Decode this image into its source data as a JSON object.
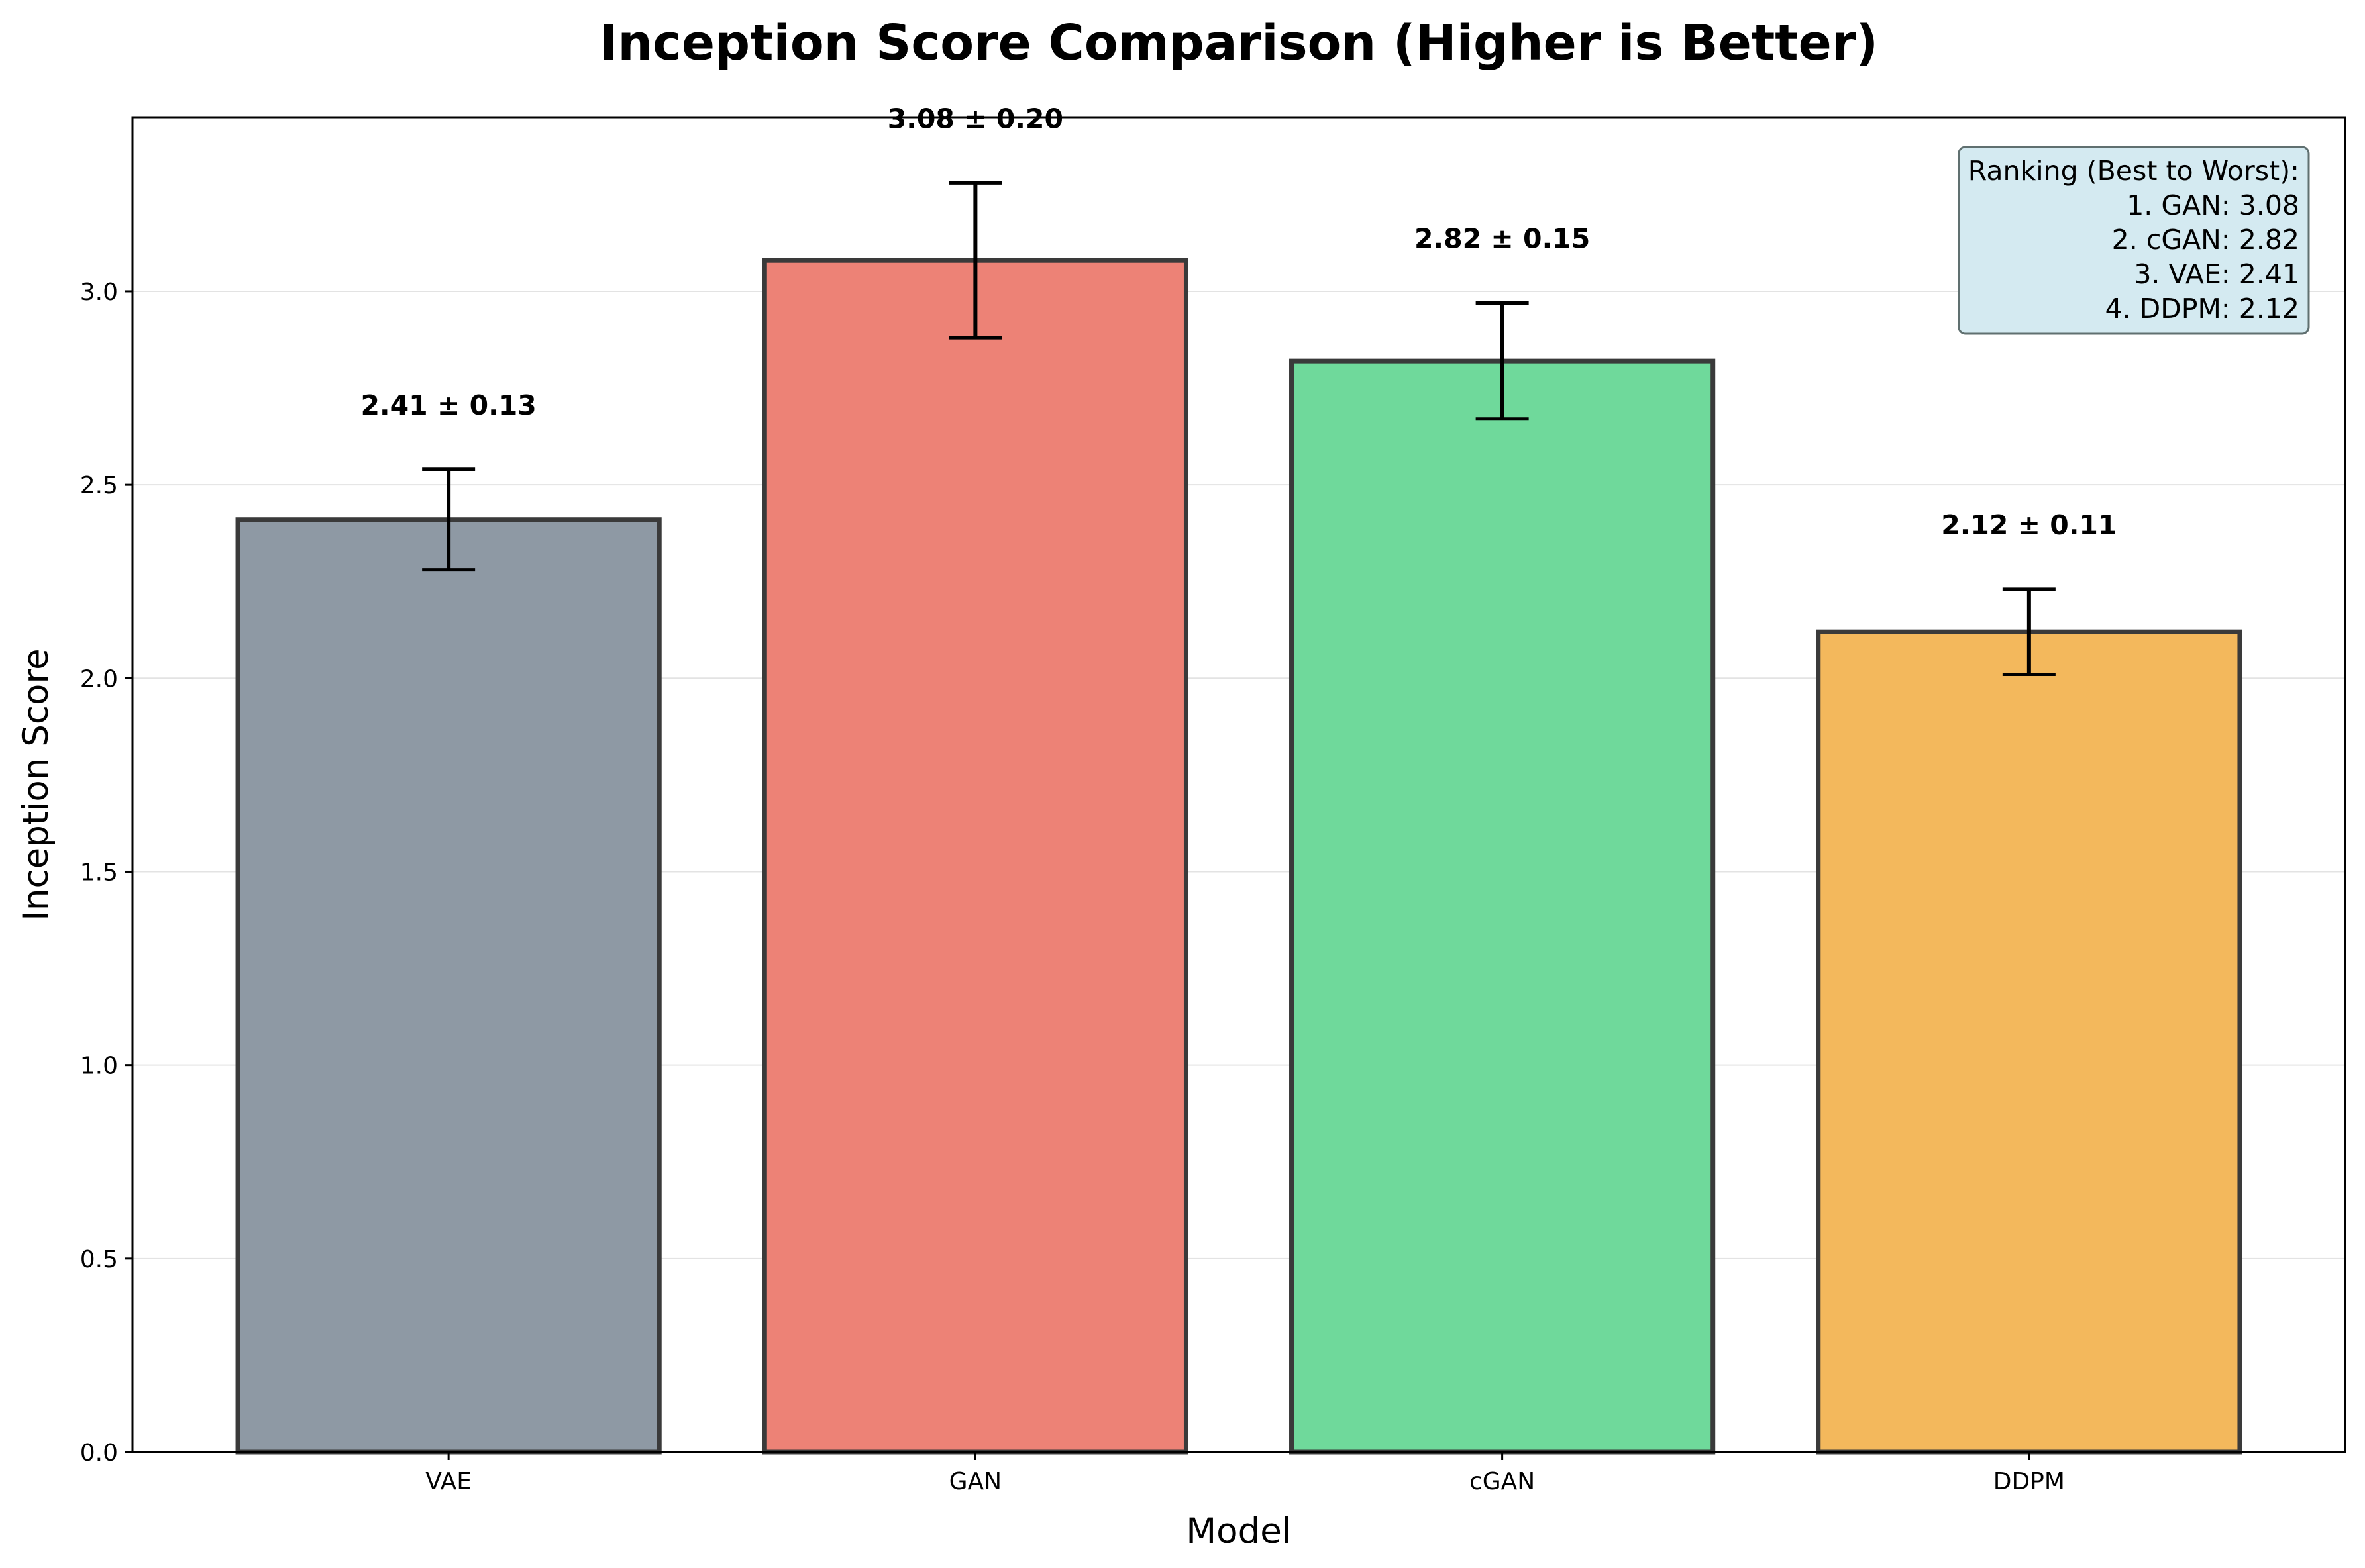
{
  "chart_data": {
    "type": "bar",
    "title": "Inception Score Comparison (Higher is Better)",
    "xlabel": "Model",
    "ylabel": "Inception Score",
    "categories": [
      "VAE",
      "GAN",
      "cGAN",
      "DDPM"
    ],
    "values": [
      2.41,
      3.08,
      2.82,
      2.12
    ],
    "errors": [
      0.13,
      0.2,
      0.15,
      0.11
    ],
    "data_labels": [
      "2.41 ± 0.13",
      "3.08 ± 0.20",
      "2.82 ± 0.15",
      "2.12 ± 0.11"
    ],
    "colors": [
      "#8e99a4",
      "#ed8276",
      "#6fd99b",
      "#f3b85c"
    ],
    "ylim": [
      0,
      3.45
    ],
    "yticks": [
      0.0,
      0.5,
      1.0,
      1.5,
      2.0,
      2.5,
      3.0
    ],
    "ytick_labels": [
      "0.0",
      "0.5",
      "1.0",
      "1.5",
      "2.0",
      "2.5",
      "3.0"
    ],
    "grid": "y",
    "ranking_box": {
      "placement": "top-right",
      "lines": [
        "Ranking (Best to Worst):",
        "1. GAN: 3.08",
        "2. cGAN: 2.82",
        "3. VAE: 2.41",
        "4. DDPM: 2.12"
      ]
    }
  }
}
